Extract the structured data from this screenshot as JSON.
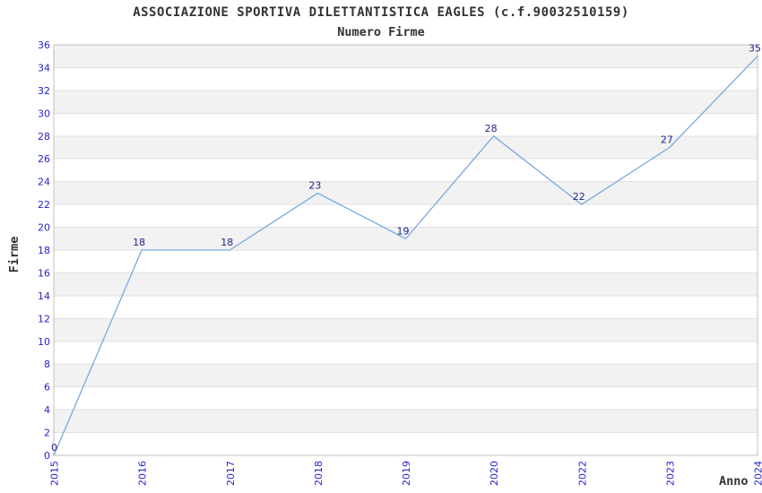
{
  "chart_data": {
    "type": "line",
    "title": "ASSOCIAZIONE SPORTIVA DILETTANTISTICA EAGLES (c.f.90032510159)",
    "subtitle": "Numero Firme",
    "xlabel": "Anno",
    "ylabel": "Firme",
    "categories": [
      "2015",
      "2016",
      "2017",
      "2018",
      "2019",
      "2020",
      "2022",
      "2023",
      "2024"
    ],
    "values": [
      0,
      18,
      18,
      23,
      19,
      28,
      22,
      27,
      35
    ],
    "ylim": [
      0,
      36
    ],
    "ytick_step": 2,
    "grid": "alternating-horizontal-bands",
    "legend": "none",
    "data_labels_visible": true
  },
  "colors": {
    "background": "#ffffff",
    "text": "#333333",
    "tick_label": "#2424cc",
    "data_label": "#24248f",
    "line": "#79a8e0",
    "band": "#f2f2f2",
    "grid_line": "#e0e0e0",
    "plot_border": "#c0c0c0"
  }
}
